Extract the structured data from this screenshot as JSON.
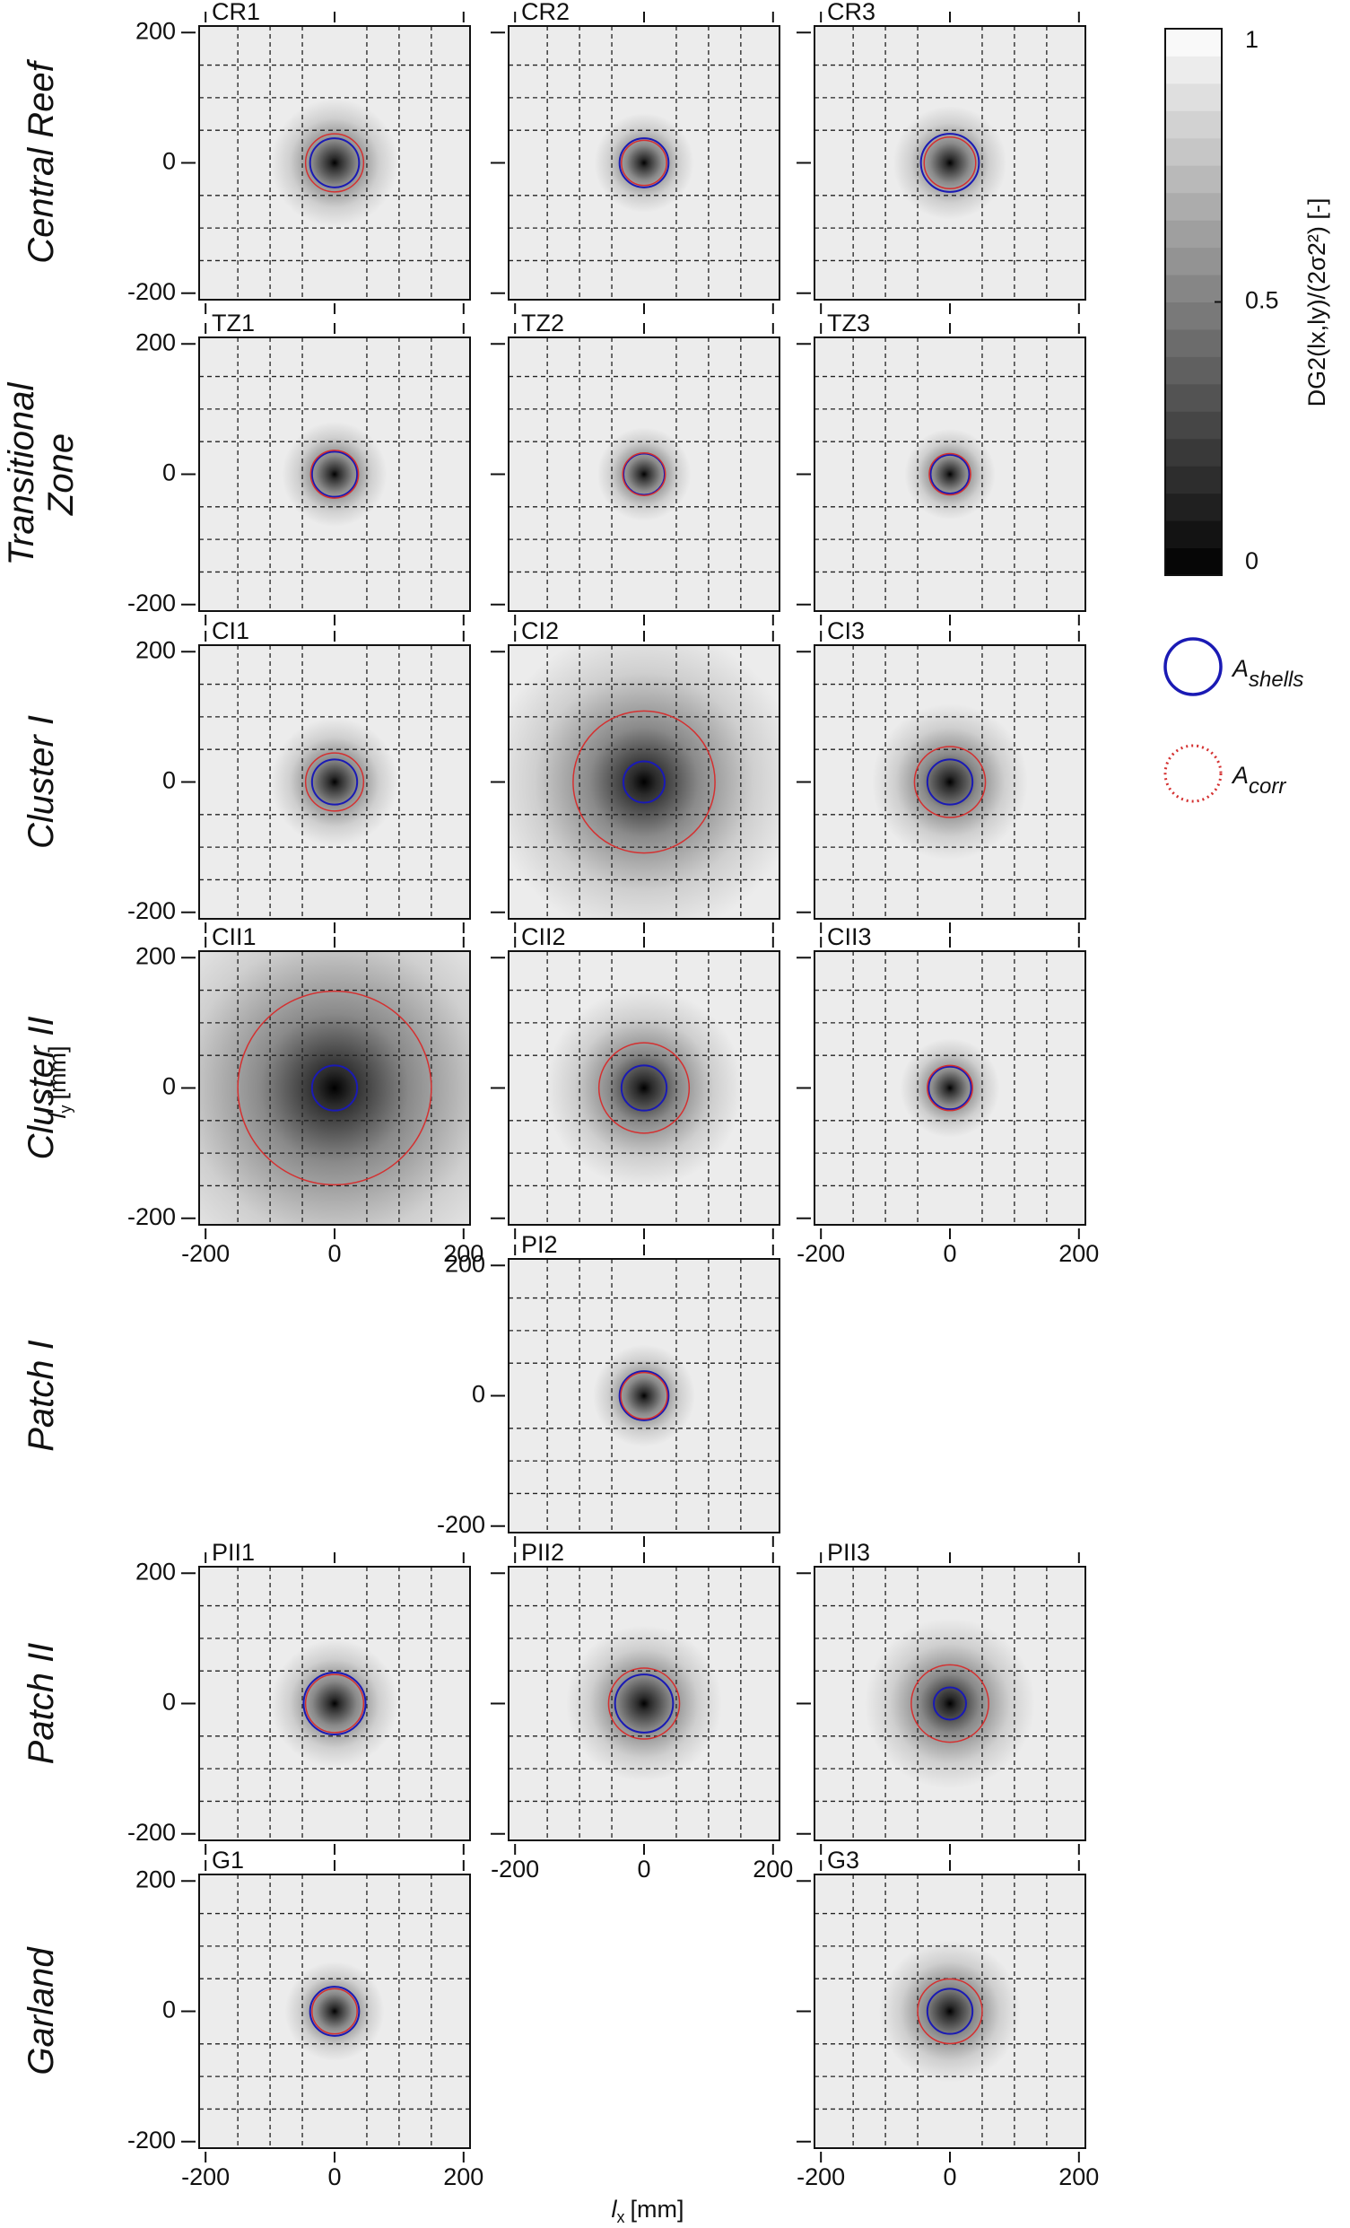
{
  "chart_data": {
    "type": "heatmap-grid",
    "x_label": {
      "symbol": "l",
      "sub": "x",
      "unit": "[mm]"
    },
    "y_label": {
      "symbol": "l",
      "sub": "y",
      "unit": "[mm]"
    },
    "xlim": [
      -210,
      210
    ],
    "ylim": [
      -210,
      210
    ],
    "xticks": [
      -200,
      0,
      200
    ],
    "yticks": [
      -200,
      0,
      200
    ],
    "grid_lines": [
      -150,
      -100,
      -50,
      50,
      100,
      150
    ],
    "colorbar": {
      "label": "DG2(lx,ly)/(2σ2²) [-]",
      "lim": [
        0,
        1
      ],
      "ticks": [
        0,
        0.5,
        1
      ]
    },
    "legend": [
      {
        "name": "A",
        "sub": "shells",
        "color": "#1a1ab4"
      },
      {
        "name": "A",
        "sub": "corr",
        "color": "#d43030"
      }
    ],
    "rows": [
      {
        "label": [
          "Central Reef"
        ],
        "panels": [
          {
            "name": "CR1",
            "shells_radius": 38,
            "corr_radius": 45
          },
          {
            "name": "CR2",
            "shells_radius": 38,
            "corr_radius": 35
          },
          {
            "name": "CR3",
            "shells_radius": 45,
            "corr_radius": 40
          }
        ]
      },
      {
        "label": [
          "Transitional",
          "Zone"
        ],
        "panels": [
          {
            "name": "TZ1",
            "shells_radius": 35,
            "corr_radius": 37
          },
          {
            "name": "TZ2",
            "shells_radius": 32,
            "corr_radius": 33
          },
          {
            "name": "TZ3",
            "shells_radius": 30,
            "corr_radius": 32
          }
        ]
      },
      {
        "label": [
          "Cluster I"
        ],
        "panels": [
          {
            "name": "CI1",
            "shells_radius": 35,
            "corr_radius": 45
          },
          {
            "name": "CI2",
            "shells_radius": 32,
            "corr_radius": 110
          },
          {
            "name": "CI3",
            "shells_radius": 35,
            "corr_radius": 55
          }
        ]
      },
      {
        "label": [
          "Cluster II"
        ],
        "panels": [
          {
            "name": "CII1",
            "shells_radius": 35,
            "corr_radius": 150
          },
          {
            "name": "CII2",
            "shells_radius": 35,
            "corr_radius": 70
          },
          {
            "name": "CII3",
            "shells_radius": 33,
            "corr_radius": 35
          }
        ]
      },
      {
        "label": [
          "Patch I"
        ],
        "panels": [
          null,
          {
            "name": "PI2",
            "shells_radius": 38,
            "corr_radius": 36
          },
          null
        ]
      },
      {
        "label": [
          "Patch II"
        ],
        "panels": [
          {
            "name": "PII1",
            "shells_radius": 48,
            "corr_radius": 45
          },
          {
            "name": "PII2",
            "shells_radius": 45,
            "corr_radius": 55
          },
          {
            "name": "PII3",
            "shells_radius": 25,
            "corr_radius": 60
          }
        ]
      },
      {
        "label": [
          "Garland"
        ],
        "panels": [
          {
            "name": "G1",
            "shells_radius": 38,
            "corr_radius": 35
          },
          null,
          {
            "name": "G3",
            "shells_radius": 35,
            "corr_radius": 50
          }
        ]
      }
    ]
  }
}
